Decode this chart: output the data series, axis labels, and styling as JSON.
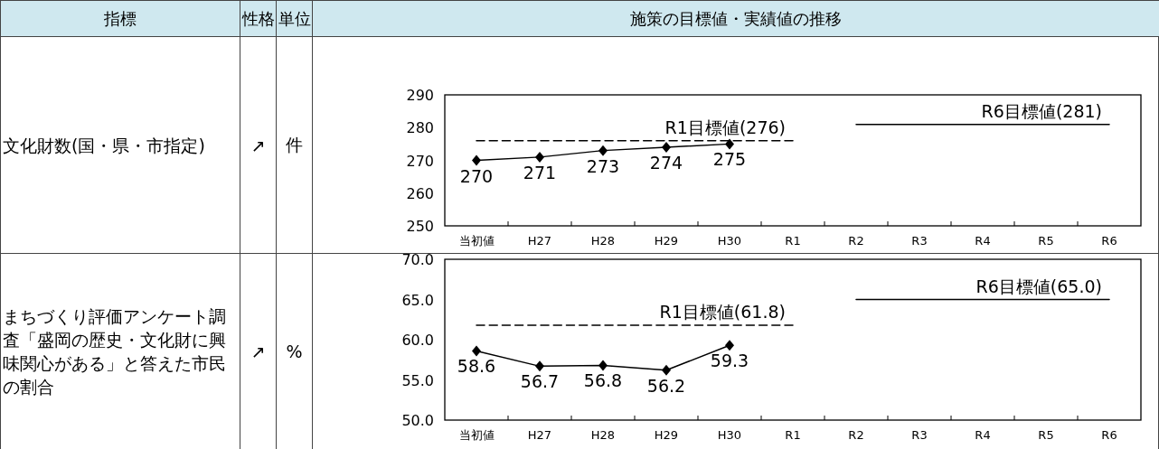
{
  "chart_data": [
    {
      "type": "other",
      "annotations": [
        "指標",
        "性格",
        "単位",
        "施策の目標値・実績値の推移"
      ]
    },
    {
      "type": "line",
      "categories": [
        "当初値",
        "H27",
        "H28",
        "H29",
        "H30",
        "R1",
        "R2",
        "R3",
        "R4",
        "R5",
        "R6"
      ],
      "ylim": [
        250,
        290
      ],
      "yticks": [
        250,
        260,
        270,
        280,
        290
      ],
      "grid": false,
      "annotations": [
        "文化財数(国・県・市指定)",
        "↗",
        "件"
      ],
      "series": [
        {
          "color": "#000000",
          "marker": "diamond",
          "line_style": "solid",
          "values": [
            270,
            271,
            273,
            274,
            275,
            null,
            null,
            null,
            null,
            null,
            null
          ],
          "value_labels": [
            "270",
            "271",
            "273",
            "274",
            "275",
            null,
            null,
            null,
            null,
            null,
            null
          ]
        },
        {
          "name": "R1目標値(276)",
          "color": "#000000",
          "marker": "none",
          "line_style": "dashed",
          "values": [
            276,
            276,
            276,
            276,
            276,
            276,
            null,
            null,
            null,
            null,
            null
          ]
        },
        {
          "name": "R6目標値(281)",
          "color": "#000000",
          "marker": "none",
          "line_style": "solid",
          "values": [
            null,
            null,
            null,
            null,
            null,
            null,
            281,
            281,
            281,
            281,
            281
          ]
        }
      ]
    },
    {
      "type": "line",
      "categories": [
        "当初値",
        "H27",
        "H28",
        "H29",
        "H30",
        "R1",
        "R2",
        "R3",
        "R4",
        "R5",
        "R6"
      ],
      "ylim": [
        50,
        70
      ],
      "yticks": [
        {
          "value": 50,
          "label": "50.0"
        },
        {
          "value": 55,
          "label": "55.0"
        },
        {
          "value": 60,
          "label": "60.0"
        },
        {
          "value": 65,
          "label": "65.0"
        },
        {
          "value": 70,
          "label": "70.0"
        }
      ],
      "grid": false,
      "annotations": [
        "まちづくり評価アンケート調査「盛岡の歴史・文化財に興味関心がある」と答えた市民の割合",
        "↗",
        "%"
      ],
      "series": [
        {
          "color": "#000000",
          "marker": "diamond",
          "line_style": "solid",
          "values": [
            58.6,
            56.7,
            56.8,
            56.2,
            59.3,
            null,
            null,
            null,
            null,
            null,
            null
          ],
          "value_labels": [
            "58.6",
            "56.7",
            "56.8",
            "56.2",
            "59.3",
            null,
            null,
            null,
            null,
            null,
            null
          ]
        },
        {
          "name": "R1目標値(61.8)",
          "color": "#000000",
          "marker": "none",
          "line_style": "dashed",
          "values": [
            61.8,
            61.8,
            61.8,
            61.8,
            61.8,
            61.8,
            null,
            null,
            null,
            null,
            null
          ]
        },
        {
          "name": "R6目標値(65.0)",
          "color": "#000000",
          "marker": "none",
          "line_style": "solid",
          "values": [
            null,
            null,
            null,
            null,
            null,
            null,
            65,
            65,
            65,
            65,
            65
          ]
        }
      ]
    }
  ]
}
